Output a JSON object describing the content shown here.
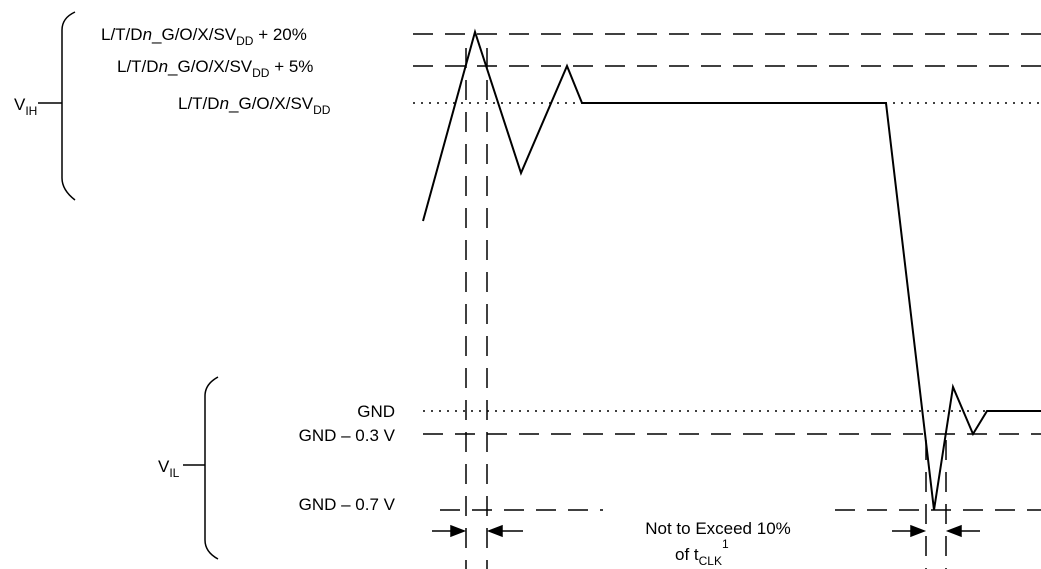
{
  "levels": {
    "vdd_plus_20": {
      "prefix": "L/T/D",
      "italic": "n",
      "mid": "_G/O/X/SV",
      "sub": "DD",
      "suffix": " + 20%"
    },
    "vdd_plus_5": {
      "prefix": "L/T/D",
      "italic": "n",
      "mid": "_G/O/X/SV",
      "sub": "DD",
      "suffix": " + 5%"
    },
    "vdd": {
      "prefix": "L/T/D",
      "italic": "n",
      "mid": "_G/O/X/SV",
      "sub": "DD",
      "suffix": ""
    },
    "gnd": "GND",
    "gnd_minus_03": "GND – 0.3 V",
    "gnd_minus_07": "GND – 0.7 V"
  },
  "brackets": {
    "vih": {
      "main": "V",
      "sub": "IH"
    },
    "vil": {
      "main": "V",
      "sub": "IL"
    }
  },
  "annotation": {
    "line1": "Not to Exceed 10%",
    "line2_prefix": "of t",
    "line2_sub": "CLK",
    "line2_sup": "1"
  },
  "colors": {
    "ink": "#000000",
    "background": "#ffffff"
  }
}
